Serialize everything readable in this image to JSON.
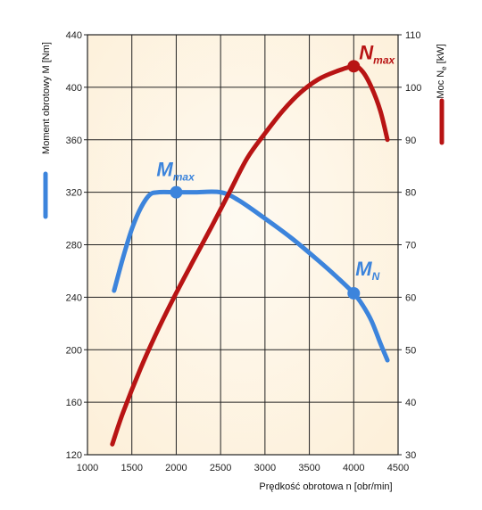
{
  "chart_data": {
    "type": "line",
    "xlabel": "Prędkość obrotowa n [obr/min]",
    "ylabel_left": "Moment obrotowy M [Nm]",
    "ylabel_right": "Moc N",
    "ylabel_right_sub": "e",
    "ylabel_right_unit": " [kW]",
    "xlim": [
      1000,
      4500
    ],
    "ylim_left": [
      120,
      440
    ],
    "ylim_right": [
      30,
      110
    ],
    "x_ticks": [
      "1000",
      "1500",
      "2000",
      "2500",
      "3000",
      "3500",
      "4000",
      "4500"
    ],
    "y_left_ticks": [
      "120",
      "160",
      "200",
      "240",
      "280",
      "320",
      "360",
      "400",
      "440"
    ],
    "y_right_ticks": [
      "30",
      "40",
      "50",
      "60",
      "70",
      "80",
      "90",
      "100",
      "110"
    ],
    "grid": true,
    "colors": {
      "torque": "#3c84dc",
      "power": "#b81414",
      "background": "#fdf0da",
      "grid": "#222222"
    },
    "series": [
      {
        "axis": "left",
        "color": "#3c84dc",
        "points": [
          [
            1300,
            245
          ],
          [
            1400,
            270
          ],
          [
            1500,
            292
          ],
          [
            1600,
            308
          ],
          [
            1700,
            318
          ],
          [
            1800,
            320
          ],
          [
            2000,
            320
          ],
          [
            2200,
            320
          ],
          [
            2500,
            320
          ],
          [
            2700,
            314
          ],
          [
            3000,
            300
          ],
          [
            3300,
            285
          ],
          [
            3600,
            268
          ],
          [
            3800,
            256
          ],
          [
            4000,
            243
          ],
          [
            4100,
            234
          ],
          [
            4200,
            222
          ],
          [
            4300,
            205
          ],
          [
            4380,
            192
          ]
        ]
      },
      {
        "axis": "right",
        "color": "#b81414",
        "points": [
          [
            1280,
            32
          ],
          [
            1400,
            38
          ],
          [
            1600,
            46.5
          ],
          [
            1800,
            54
          ],
          [
            2000,
            60.8
          ],
          [
            2200,
            67.2
          ],
          [
            2400,
            73.5
          ],
          [
            2600,
            80
          ],
          [
            2800,
            86.5
          ],
          [
            3000,
            91.2
          ],
          [
            3200,
            95.5
          ],
          [
            3400,
            99
          ],
          [
            3600,
            101.5
          ],
          [
            3800,
            103
          ],
          [
            4000,
            104
          ],
          [
            4100,
            103
          ],
          [
            4200,
            100
          ],
          [
            4300,
            95.5
          ],
          [
            4380,
            90
          ]
        ]
      }
    ],
    "annotations": [
      {
        "id": "m-max",
        "main": "M",
        "sub": "max",
        "x": 2000,
        "y": 320,
        "axis": "left",
        "color": "#3c84dc"
      },
      {
        "id": "m-n",
        "main": "M",
        "sub": "N",
        "x": 4000,
        "y": 243,
        "axis": "left",
        "color": "#3c84dc"
      },
      {
        "id": "n-max",
        "main": "N",
        "sub": "max",
        "x": 4000,
        "y": 104,
        "axis": "right",
        "color": "#b81414"
      }
    ]
  }
}
